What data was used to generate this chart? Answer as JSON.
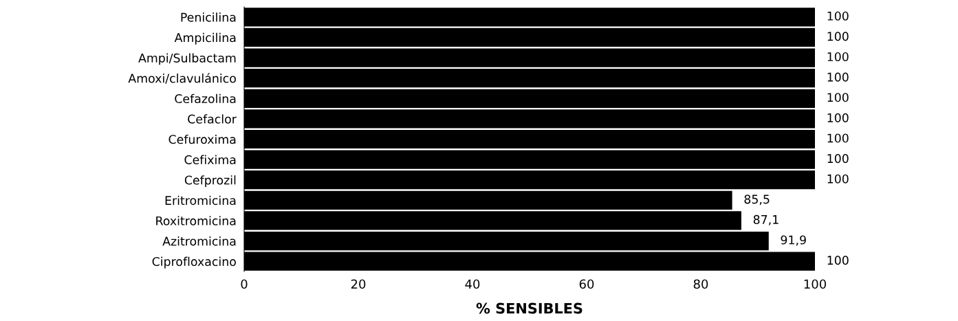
{
  "chart_data": {
    "type": "bar",
    "orientation": "horizontal",
    "xlabel": "% SENSIBLES",
    "categories": [
      "Penicilina",
      "Ampicilina",
      "Ampi/Sulbactam",
      "Amoxi/clavulánico",
      "Cefazolina",
      "Cefaclor",
      "Cefuroxima",
      "Cefixima",
      "Cefprozil",
      "Eritromicina",
      "Roxitromicina",
      "Azitromicina",
      "Ciprofloxacino"
    ],
    "values": [
      100,
      100,
      100,
      100,
      100,
      100,
      100,
      100,
      100,
      85.5,
      87.1,
      91.9,
      100
    ],
    "value_labels": [
      "100",
      "100",
      "100",
      "100",
      "100",
      "100",
      "100",
      "100",
      "100",
      "85,5",
      "87,1",
      "91,9",
      "100"
    ],
    "color": "#000000",
    "xlim": [
      0,
      100
    ],
    "xticks": [
      0,
      20,
      40,
      60,
      80,
      100
    ],
    "grid": false,
    "legend": false
  }
}
